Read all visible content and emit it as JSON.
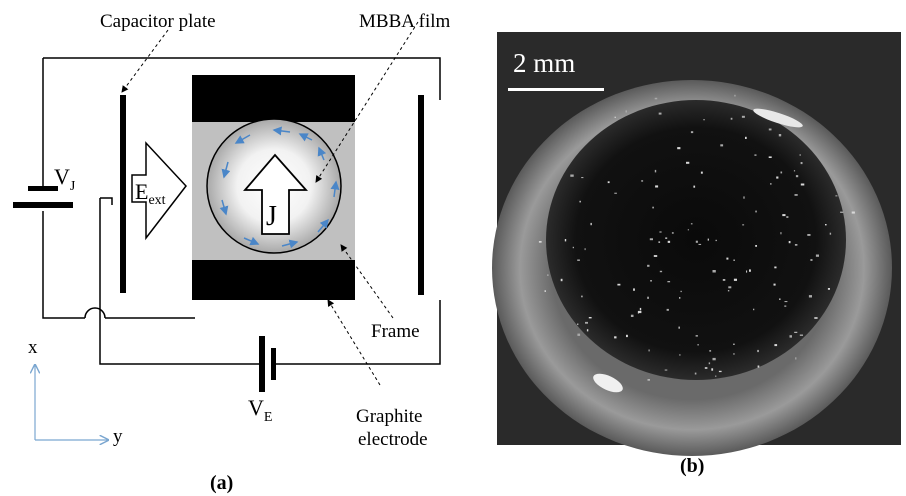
{
  "panel_a": {
    "labels": {
      "capacitor_plate": "Capacitor plate",
      "mbba_film": "MBBA film",
      "frame": "Frame",
      "graphite_line1": "Graphite",
      "graphite_line2": "electrode",
      "vj_main": "V",
      "vj_sub": "J",
      "ve_main": "V",
      "ve_sub": "E",
      "eext_main": "E",
      "eext_sub": "ext",
      "j": "J",
      "axis_x": "x",
      "axis_y": "y"
    },
    "caption": "(a)",
    "colors": {
      "line": "#000000",
      "electrode": "#000000",
      "frame_fill": "#c0c0c0",
      "flow_arrow": "#4a86c8",
      "axis": "#7aa6d0"
    }
  },
  "panel_b": {
    "scale_bar_label": "2 mm",
    "caption": "(b)",
    "colors": {
      "background": "#2a2a2a",
      "ring": "#8a8a8a",
      "pool": "#0b0b0b"
    }
  }
}
